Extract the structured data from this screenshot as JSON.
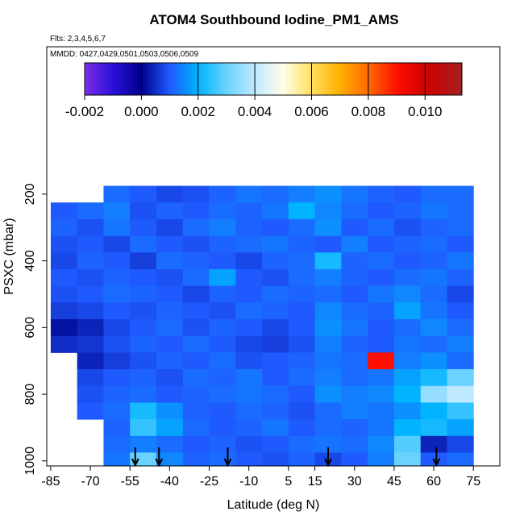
{
  "chart_data": {
    "type": "heatmap",
    "title": "ATOM4 Southbound Iodine_PM1_AMS",
    "subtitle": "Flts: 2,3,4,5,6,7",
    "annotation": "MMDD: 0427,0429,0501,0503,0506,0509",
    "x_label": "Latitude (deg N)",
    "y_label": "PSXC (mbar)",
    "xlim": [
      -86.5,
      85
    ],
    "ylim": [
      1015,
      -242
    ],
    "xticks": [
      -85,
      -70,
      -55,
      -40,
      -25,
      -10,
      5,
      15,
      30,
      45,
      60,
      75
    ],
    "yticks": [
      200,
      400,
      600,
      800,
      1000
    ],
    "lat_bins": [
      -85,
      -75,
      -65,
      -55,
      -45,
      -35,
      -25,
      -15,
      -5,
      5,
      15,
      25,
      35,
      45,
      55,
      65,
      75
    ],
    "pressure_bins": [
      175,
      225,
      275,
      325,
      375,
      425,
      475,
      525,
      575,
      625,
      675,
      725,
      775,
      825,
      875,
      925,
      975,
      1025
    ],
    "values": [
      [
        null,
        null,
        0.0012,
        0.001,
        0.0008,
        0.0009,
        0.0011,
        0.0013,
        0.0012,
        0.0014,
        0.0016,
        0.0013,
        0.0011,
        0.001,
        0.0012,
        0.0012
      ],
      [
        0.001,
        0.0012,
        0.0014,
        0.0009,
        0.0011,
        0.001,
        0.0012,
        0.0011,
        0.0013,
        0.002,
        0.0015,
        0.0012,
        0.001,
        0.0011,
        0.0013,
        0.0012
      ],
      [
        0.0011,
        0.0009,
        0.0013,
        0.001,
        0.0008,
        0.0012,
        0.0014,
        0.0011,
        0.001,
        0.0012,
        0.0016,
        0.001,
        0.0012,
        0.0009,
        0.0011,
        0.0012
      ],
      [
        0.0009,
        0.001,
        0.0008,
        0.0012,
        0.001,
        0.0009,
        0.0011,
        0.0012,
        0.0013,
        0.0011,
        0.001,
        0.0014,
        0.001,
        0.0011,
        0.0012,
        0.001
      ],
      [
        0.0008,
        0.0011,
        0.001,
        0.0007,
        0.0012,
        0.0011,
        0.001,
        0.0008,
        0.0011,
        0.0012,
        0.0022,
        0.0011,
        0.0012,
        0.001,
        0.0011,
        0.0013
      ],
      [
        0.001,
        0.0009,
        0.0011,
        0.001,
        0.0009,
        0.0012,
        0.0018,
        0.001,
        0.0009,
        0.0012,
        0.0014,
        0.0011,
        0.001,
        0.0012,
        0.0013,
        0.0011
      ],
      [
        0.0009,
        0.001,
        0.0012,
        0.0011,
        0.001,
        0.0008,
        0.0011,
        0.001,
        0.0012,
        0.0011,
        0.0012,
        0.001,
        0.0013,
        0.0015,
        0.0012,
        0.0008
      ],
      [
        0.0007,
        0.0008,
        0.001,
        0.0009,
        0.0011,
        0.001,
        0.0009,
        0.0012,
        0.0011,
        0.001,
        0.0015,
        0.0012,
        0.0011,
        0.0018,
        0.0013,
        0.001
      ],
      [
        0.0002,
        0.0004,
        0.0008,
        0.001,
        0.0012,
        0.0009,
        0.0011,
        0.001,
        0.0008,
        0.001,
        0.0016,
        0.0013,
        0.001,
        0.0012,
        0.0015,
        0.0012
      ],
      [
        0.0005,
        0.0006,
        0.0009,
        0.0011,
        0.001,
        0.0012,
        0.001,
        0.0008,
        0.0007,
        0.0009,
        0.0014,
        0.0011,
        0.001,
        0.0013,
        0.0012,
        0.0014
      ],
      [
        null,
        0.0004,
        0.0007,
        0.0009,
        0.0011,
        0.001,
        0.0012,
        0.0009,
        0.001,
        0.0011,
        0.0013,
        0.0012,
        0.009,
        0.0014,
        0.0016,
        0.0012
      ],
      [
        null,
        0.0008,
        0.001,
        0.0011,
        0.0009,
        0.0012,
        0.0011,
        0.0013,
        0.001,
        0.0012,
        0.0014,
        0.0012,
        0.0013,
        0.0018,
        0.0022,
        0.003
      ],
      [
        null,
        0.0009,
        0.0011,
        0.0012,
        0.001,
        0.0011,
        0.0012,
        0.0013,
        0.0012,
        0.001,
        0.0016,
        0.0014,
        0.0015,
        0.002,
        0.0035,
        0.004
      ],
      [
        null,
        0.001,
        0.0012,
        0.0022,
        0.0016,
        0.0011,
        0.001,
        0.0012,
        0.0011,
        0.0009,
        0.0012,
        0.0014,
        0.0013,
        0.0016,
        0.002,
        0.0025
      ],
      [
        null,
        null,
        0.0011,
        0.0025,
        0.0018,
        0.0012,
        0.001,
        0.0011,
        0.0013,
        0.001,
        0.0012,
        0.0011,
        0.0013,
        0.002,
        0.0022,
        0.0018
      ],
      [
        null,
        null,
        0.0012,
        0.0014,
        0.0012,
        0.001,
        0.0011,
        0.0009,
        0.001,
        0.0012,
        0.0013,
        0.0012,
        0.0015,
        0.0028,
        0.0004,
        0.0008
      ],
      [
        null,
        null,
        0.0013,
        0.003,
        0.0015,
        0.0011,
        0.0012,
        0.001,
        0.0009,
        0.0011,
        0.0008,
        0.001,
        0.0014,
        0.003,
        0.001,
        0.0012
      ]
    ],
    "colorbar": {
      "lim": [
        -0.002,
        0.0113
      ],
      "ticks": [
        -0.002,
        {
          "value": 0,
          "label": "0.000"
        },
        0.002,
        0.004,
        0.006,
        0.008,
        {
          "value": 0.01,
          "label": "0.010"
        }
      ],
      "colorscale": [
        {
          "value": -0.002,
          "color": "#7d2ee6"
        },
        {
          "value": -0.001,
          "color": "#2a10d8"
        },
        {
          "value": 0,
          "color": "#00008b"
        },
        {
          "value": 0.001,
          "color": "#1f5aff"
        },
        {
          "value": 0.002,
          "color": "#00b4ff"
        },
        {
          "value": 0.003,
          "color": "#6ad2ff"
        },
        {
          "value": 0.004,
          "color": "#bfe9ff"
        },
        {
          "value": 0.005,
          "color": "#ffffe8"
        },
        {
          "value": 0.006,
          "color": "#ffe060"
        },
        {
          "value": 0.007,
          "color": "#ffb000"
        },
        {
          "value": 0.008,
          "color": "#ff6a00"
        },
        {
          "value": 0.009,
          "color": "#ff1000"
        },
        {
          "value": 0.01,
          "color": "#d00000"
        },
        {
          "value": 0.0113,
          "color": "#a52020"
        }
      ]
    },
    "arrows": {
      "x": [
        -53,
        -44,
        -18,
        20,
        61
      ],
      "color": "#000000"
    }
  }
}
